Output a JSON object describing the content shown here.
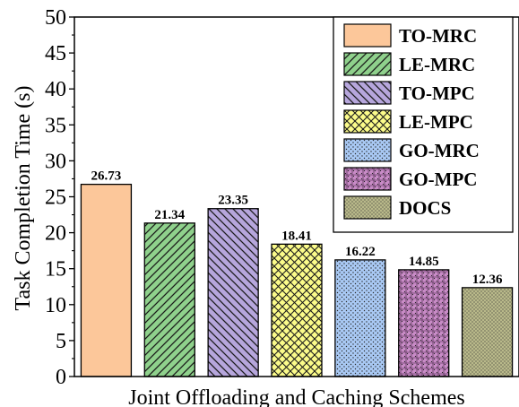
{
  "chart_data": {
    "type": "bar",
    "title": "",
    "xlabel": "Joint Offloading and Caching Schemes",
    "ylabel": "Task Completion Time (s)",
    "ylim": [
      0,
      50
    ],
    "yticks": [
      0,
      5,
      10,
      15,
      20,
      25,
      30,
      35,
      40,
      45,
      50
    ],
    "grid": false,
    "legend_position": "top-right",
    "series": [
      {
        "name": "TO-MRC",
        "value": 26.73,
        "label": "26.73",
        "color": "#fcc79a",
        "pattern": "solid"
      },
      {
        "name": "LE-MRC",
        "value": 21.34,
        "label": "21.34",
        "color": "#8fd18c",
        "pattern": "diag-right"
      },
      {
        "name": "TO-MPC",
        "value": 23.35,
        "label": "23.35",
        "color": "#b6a6dc",
        "pattern": "diag-left"
      },
      {
        "name": "LE-MPC",
        "value": 18.41,
        "label": "18.41",
        "color": "#fbfb8a",
        "pattern": "crosshatch"
      },
      {
        "name": "GO-MRC",
        "value": 16.22,
        "label": "16.22",
        "color": "#a9c9f4",
        "pattern": "dots"
      },
      {
        "name": "GO-MPC",
        "value": 14.85,
        "label": "14.85",
        "color": "#c88bc6",
        "pattern": "grid-dots"
      },
      {
        "name": "DOCS",
        "value": 12.36,
        "label": "12.36",
        "color": "#b9b98a",
        "pattern": "dense-dots"
      }
    ]
  }
}
